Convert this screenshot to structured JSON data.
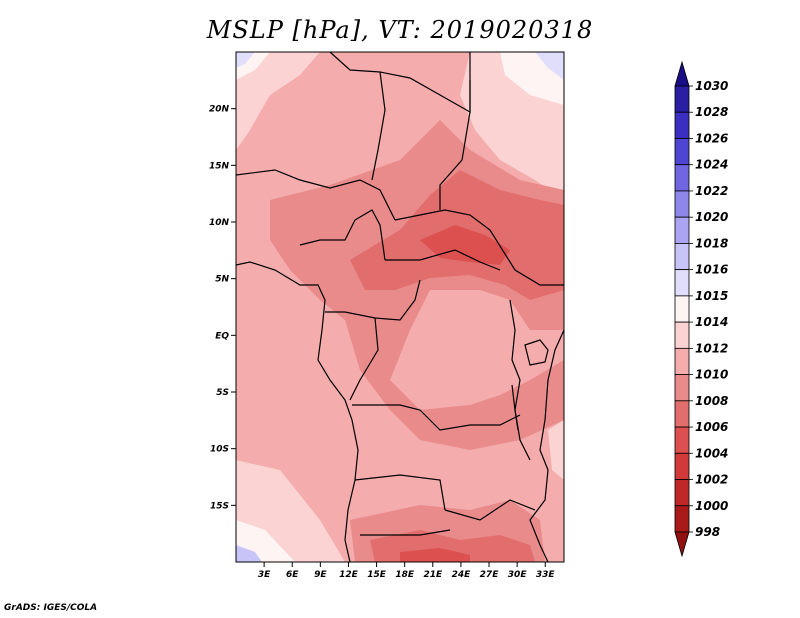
{
  "title": "MSLP [hPa], VT: 2019020318",
  "footer": "GrADS: IGES/COLA",
  "map": {
    "lon_range": [
      0,
      35
    ],
    "lat_range": [
      -20,
      25
    ],
    "lat_labels": [
      "20N",
      "15N",
      "10N",
      "5N",
      "EQ",
      "5S",
      "10S",
      "15S"
    ],
    "lat_values": [
      20,
      15,
      10,
      5,
      0,
      -5,
      -10,
      -15
    ],
    "lon_labels": [
      "3E",
      "6E",
      "9E",
      "12E",
      "15E",
      "18E",
      "21E",
      "24E",
      "27E",
      "30E",
      "33E"
    ],
    "lon_values": [
      3,
      6,
      9,
      12,
      15,
      18,
      21,
      24,
      27,
      30,
      33
    ]
  },
  "colorbar": {
    "levels": [
      "1030",
      "1028",
      "1026",
      "1024",
      "1022",
      "1020",
      "1018",
      "1016",
      "1015",
      "1014",
      "1012",
      "1010",
      "1008",
      "1006",
      "1004",
      "1002",
      "1000",
      "998"
    ],
    "colors": [
      "#1a0e86",
      "#2a1fa3",
      "#3a2fc0",
      "#4e45d3",
      "#6f66e0",
      "#8e87ea",
      "#aaa4f2",
      "#c8c4f7",
      "#e0defb",
      "#fff4f4",
      "#fcd3d3",
      "#f4acac",
      "#e98b8b",
      "#e26d6d",
      "#dc5050",
      "#d23a3a",
      "#c02828",
      "#a91b1b",
      "#901010"
    ]
  }
}
